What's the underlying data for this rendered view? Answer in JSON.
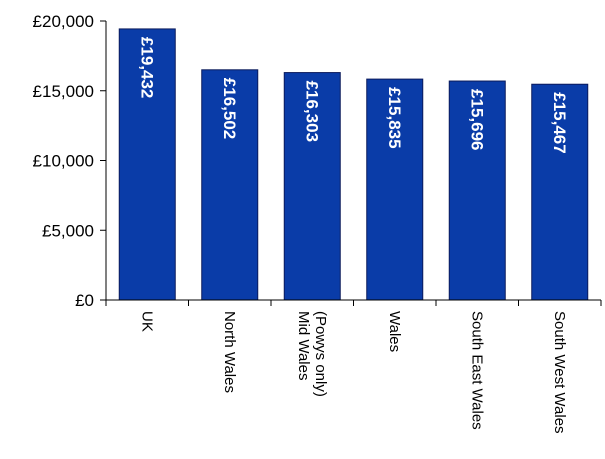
{
  "chart_data": {
    "type": "bar",
    "categories": [
      [
        "UK"
      ],
      [
        "North Wales"
      ],
      [
        "Mid Wales",
        "(Powys only)"
      ],
      [
        "Wales"
      ],
      [
        "South East Wales"
      ],
      [
        "South West Wales"
      ]
    ],
    "values": [
      19432,
      16502,
      16303,
      15835,
      15696,
      15467
    ],
    "data_labels": [
      "£19,432",
      "£16,502",
      "£16,303",
      "£15,835",
      "£15,696",
      "£15,467"
    ],
    "ylim": [
      0,
      20000
    ],
    "y_ticks": [
      0,
      5000,
      10000,
      15000,
      20000
    ],
    "y_tick_labels": [
      "£0",
      "£5,000",
      "£10,000",
      "£15,000",
      "£20,000"
    ],
    "title": "",
    "xlabel": "",
    "ylabel": "",
    "grid": false,
    "legend": "none",
    "bar_color": "#0a3ca8",
    "bar_edge_color": "#0a1a5c"
  }
}
